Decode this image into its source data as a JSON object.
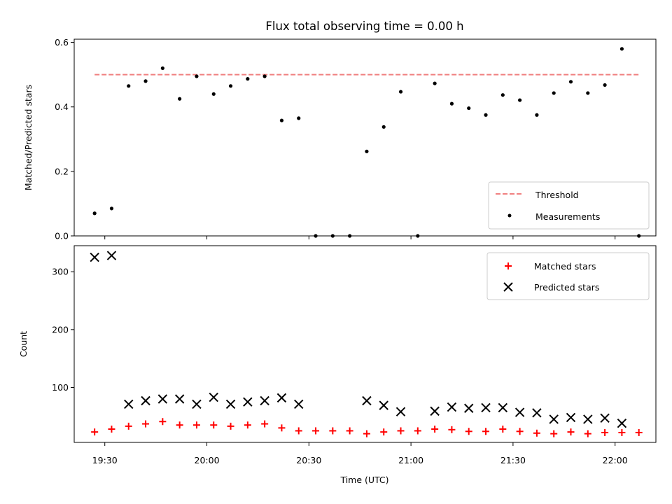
{
  "title": "Flux total observing time = 0.00 h",
  "colors": {
    "threshold": "#f08080",
    "measurement": "#000000",
    "matched": "#ff0000",
    "predicted": "#000000"
  },
  "chart_data": [
    {
      "type": "scatter",
      "ylabel": "Matched/Predicted stars",
      "xlabel": "",
      "ylim": [
        0,
        0.61
      ],
      "xlim": [
        "19:21",
        "22:12"
      ],
      "yticks": [
        "0.0",
        "0.2",
        "0.4",
        "0.6"
      ],
      "ytick_values": [
        0,
        0.2,
        0.4,
        0.6
      ],
      "legend": {
        "placement": "lower-right",
        "entries": [
          "Threshold",
          "Measurements"
        ]
      },
      "threshold": {
        "name": "Threshold",
        "value": 0.5,
        "x": [
          "19:27",
          "22:07"
        ],
        "style": "dashed"
      },
      "series": [
        {
          "name": "Measurements",
          "marker": "dot",
          "x": [
            "19:27",
            "19:32",
            "19:37",
            "19:42",
            "19:47",
            "19:52",
            "19:57",
            "20:02",
            "20:07",
            "20:12",
            "20:17",
            "20:22",
            "20:27",
            "20:32",
            "20:37",
            "20:42",
            "20:47",
            "20:52",
            "20:57",
            "21:02",
            "21:07",
            "21:12",
            "21:17",
            "21:22",
            "21:27",
            "21:32",
            "21:37",
            "21:42",
            "21:47",
            "21:52",
            "21:57",
            "22:02",
            "22:07"
          ],
          "y": [
            0.07,
            0.085,
            0.465,
            0.48,
            0.52,
            0.425,
            0.495,
            0.44,
            0.465,
            0.487,
            0.495,
            0.358,
            0.365,
            0.0,
            0.0,
            0.0,
            0.262,
            0.338,
            0.447,
            0.0,
            0.473,
            0.41,
            0.396,
            0.375,
            0.437,
            0.421,
            0.375,
            0.443,
            0.478,
            0.443,
            0.468,
            0.58,
            0.0
          ]
        }
      ]
    },
    {
      "type": "scatter",
      "ylabel": "Count",
      "xlabel": "Time (UTC)",
      "ylim": [
        5,
        345
      ],
      "xlim": [
        "19:21",
        "22:12"
      ],
      "yticks": [
        "100",
        "200",
        "300"
      ],
      "ytick_values": [
        100,
        200,
        300
      ],
      "xticks": [
        "19:30",
        "20:00",
        "20:30",
        "21:00",
        "21:30",
        "22:00"
      ],
      "legend": {
        "placement": "top-right",
        "entries": [
          "Matched stars",
          "Predicted stars"
        ]
      },
      "series": [
        {
          "name": "Matched stars",
          "marker": "plus",
          "x": [
            "19:27",
            "19:32",
            "19:37",
            "19:42",
            "19:47",
            "19:52",
            "19:57",
            "20:02",
            "20:07",
            "20:12",
            "20:17",
            "20:22",
            "20:27",
            "20:32",
            "20:37",
            "20:42",
            "20:47",
            "20:52",
            "20:57",
            "21:02",
            "21:07",
            "21:12",
            "21:17",
            "21:22",
            "21:27",
            "21:32",
            "21:37",
            "21:42",
            "21:47",
            "21:52",
            "21:57",
            "22:02",
            "22:07"
          ],
          "y": [
            23,
            28,
            33,
            37,
            41,
            35,
            35,
            35,
            33,
            35,
            37,
            30,
            25,
            25,
            25,
            25,
            20,
            23,
            25,
            25,
            28,
            27,
            24,
            24,
            28,
            24,
            21,
            20,
            23,
            20,
            22,
            22,
            22
          ]
        },
        {
          "name": "Predicted stars",
          "marker": "x",
          "x": [
            "19:27",
            "19:32",
            "19:37",
            "19:42",
            "19:47",
            "19:52",
            "19:57",
            "20:02",
            "20:07",
            "20:12",
            "20:17",
            "20:22",
            "20:27",
            "20:47",
            "20:52",
            "20:57",
            "21:07",
            "21:12",
            "21:17",
            "21:22",
            "21:27",
            "21:32",
            "21:37",
            "21:42",
            "21:47",
            "21:52",
            "21:57",
            "22:02"
          ],
          "y": [
            325,
            328,
            71,
            77,
            80,
            80,
            71,
            83,
            71,
            75,
            77,
            82,
            71,
            77,
            69,
            58,
            59,
            66,
            64,
            65,
            65,
            57,
            56,
            45,
            48,
            45,
            47,
            38
          ]
        }
      ]
    }
  ]
}
